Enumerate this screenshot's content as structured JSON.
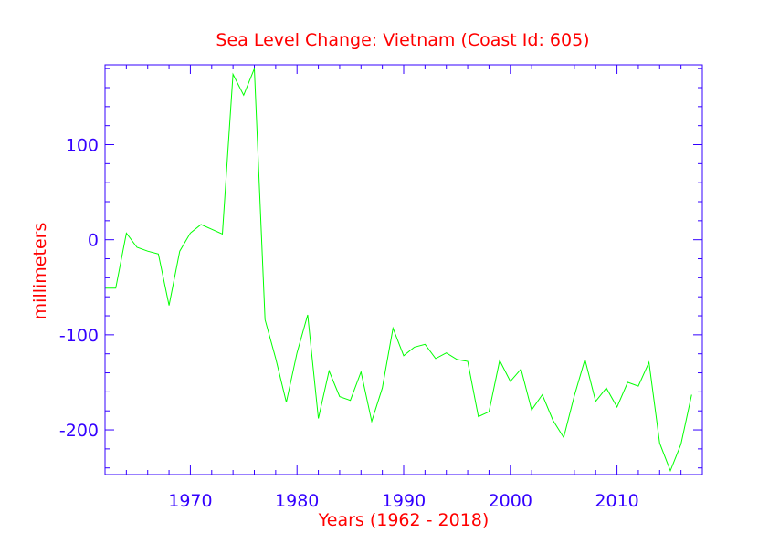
{
  "chart_data": {
    "type": "line",
    "title": "Sea Level Change: Vietnam (Coast Id: 605)",
    "xlabel": "Years (1962 - 2018)",
    "ylabel": "millimeters",
    "xlim": [
      1962,
      2018
    ],
    "ylim": [
      -247,
      184
    ],
    "x_ticks": [
      1970,
      1980,
      1990,
      2000,
      2010
    ],
    "x_tick_labels": [
      "1970",
      "1980",
      "1990",
      "2000",
      "2010"
    ],
    "x_minor_step": 2,
    "y_ticks": [
      100,
      0,
      -100,
      -200
    ],
    "y_tick_labels": [
      "100",
      "0",
      "-100",
      "-200"
    ],
    "y_minor_step": 20,
    "colors": {
      "title": "#ff0000",
      "axes": "#3300ff",
      "line": "#00ff00"
    },
    "series": [
      {
        "name": "sea level",
        "x": [
          1962,
          1963,
          1964,
          1965,
          1966,
          1967,
          1968,
          1969,
          1970,
          1971,
          1972,
          1973,
          1974,
          1975,
          1976,
          1977,
          1978,
          1979,
          1980,
          1981,
          1982,
          1983,
          1984,
          1985,
          1986,
          1987,
          1988,
          1989,
          1990,
          1991,
          1992,
          1993,
          1994,
          1995,
          1996,
          1997,
          1998,
          1999,
          2000,
          2001,
          2002,
          2003,
          2004,
          2005,
          2006,
          2007,
          2008,
          2009,
          2010,
          2011,
          2012,
          2013,
          2014,
          2015,
          2016,
          2017
        ],
        "values": [
          -51,
          -51,
          7,
          -8,
          -12,
          -15,
          -69,
          -12,
          7,
          16,
          11,
          6,
          174,
          152,
          180,
          -84,
          -125,
          -171,
          -119,
          -79,
          -188,
          -138,
          -165,
          -169,
          -139,
          -191,
          -156,
          -93,
          -122,
          -113,
          -110,
          -125,
          -119,
          -126,
          -128,
          -186,
          -181,
          -127,
          -149,
          -136,
          -179,
          -163,
          -190,
          -208,
          -164,
          -126,
          -170,
          -156,
          -176,
          -150,
          -154,
          -129,
          -214,
          -243,
          -215,
          -163
        ]
      }
    ]
  }
}
